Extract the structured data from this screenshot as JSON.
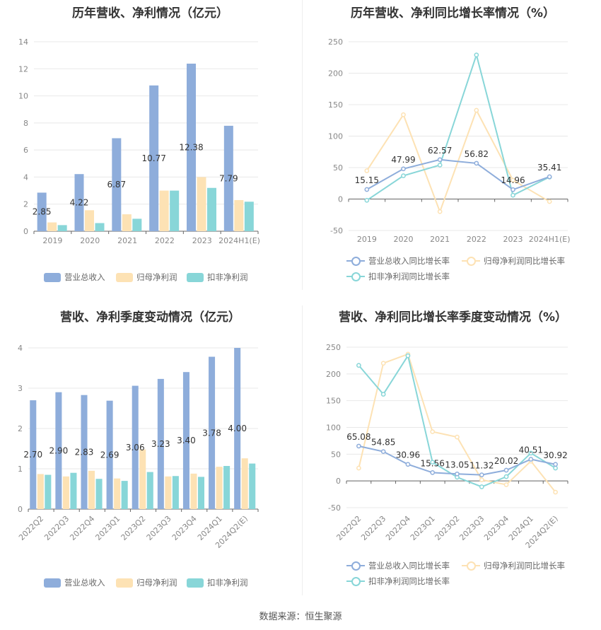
{
  "source_note": "数据来源：恒生聚源",
  "colors": {
    "revenue": "#8eaddb",
    "parent_profit": "#fde2b4",
    "deducted_profit": "#88d6d8",
    "revenue_line": "#8eaddb",
    "parent_line": "#fde2b4",
    "deducted_line": "#88d6d8"
  },
  "chart_data": [
    {
      "type": "bar",
      "title": "历年营收、净利情况（亿元）",
      "categories": [
        "2019",
        "2020",
        "2021",
        "2022",
        "2023",
        "2024H1(E)"
      ],
      "ylim": [
        0,
        14
      ],
      "yticks": [
        0,
        2,
        4,
        6,
        8,
        10,
        12,
        14
      ],
      "series": [
        {
          "name": "营业总收入",
          "values": [
            2.85,
            4.22,
            6.87,
            10.77,
            12.38,
            7.79
          ],
          "labels": [
            "2.85",
            "4.22",
            "6.87",
            "10.77",
            "12.38",
            "7.79"
          ]
        },
        {
          "name": "归母净利润",
          "values": [
            0.65,
            1.55,
            1.25,
            3.0,
            4.0,
            2.3
          ]
        },
        {
          "name": "扣非净利润",
          "values": [
            0.45,
            0.6,
            0.92,
            3.0,
            3.2,
            2.18
          ]
        }
      ],
      "legend": "bottom"
    },
    {
      "type": "line",
      "title": "历年营收、净利同比增长率情况（%）",
      "categories": [
        "2019",
        "2020",
        "2021",
        "2022",
        "2023",
        "2024H1(E)"
      ],
      "ylim": [
        -50,
        250
      ],
      "yticks": [
        -50,
        0,
        50,
        100,
        150,
        200,
        250
      ],
      "series": [
        {
          "name": "营业总收入同比增长率",
          "values": [
            15.15,
            47.99,
            62.57,
            56.82,
            14.96,
            35.41
          ],
          "labels": [
            "15.15",
            "47.99",
            "62.57",
            "56.82",
            "14.96",
            "35.41"
          ]
        },
        {
          "name": "归母净利润同比增长率",
          "values": [
            45,
            134,
            -20,
            141,
            30,
            -4
          ]
        },
        {
          "name": "扣非净利润同比增长率",
          "values": [
            -2,
            37,
            54,
            229,
            6,
            35
          ]
        }
      ],
      "legend": "bottom"
    },
    {
      "type": "bar",
      "title": "营收、净利季度变动情况（亿元）",
      "categories": [
        "2022Q2",
        "2022Q3",
        "2022Q4",
        "2023Q1",
        "2023Q2",
        "2023Q3",
        "2023Q4",
        "2024Q1",
        "2024Q2(E)"
      ],
      "ylim": [
        0,
        4
      ],
      "yticks": [
        0,
        1,
        2,
        3,
        4
      ],
      "series": [
        {
          "name": "营业总收入",
          "values": [
            2.7,
            2.9,
            2.83,
            2.69,
            3.06,
            3.23,
            3.4,
            3.78,
            4.0
          ],
          "labels": [
            "2.70",
            "2.90",
            "2.83",
            "2.69",
            "3.06",
            "3.23",
            "3.40",
            "3.78",
            "4.00"
          ]
        },
        {
          "name": "归母净利润",
          "values": [
            0.87,
            0.81,
            0.95,
            0.76,
            1.48,
            0.81,
            0.88,
            1.05,
            1.26
          ]
        },
        {
          "name": "扣非净利润",
          "values": [
            0.85,
            0.9,
            0.75,
            0.7,
            0.92,
            0.82,
            0.8,
            1.07,
            1.13
          ]
        }
      ],
      "legend": "bottom"
    },
    {
      "type": "line",
      "title": "营收、净利同比增长率季度变动情况（%）",
      "categories": [
        "2022Q2",
        "2022Q3",
        "2022Q4",
        "2023Q1",
        "2023Q2",
        "2023Q3",
        "2023Q4",
        "2024Q1",
        "2024Q2(E)"
      ],
      "ylim": [
        -50,
        250
      ],
      "yticks": [
        -50,
        0,
        50,
        100,
        150,
        200,
        250
      ],
      "series": [
        {
          "name": "营业总收入同比增长率",
          "values": [
            65.08,
            54.85,
            30.96,
            15.56,
            13.05,
            11.32,
            20.02,
            40.51,
            30.92
          ],
          "labels": [
            "65.08",
            "54.85",
            "30.96",
            "15.56",
            "13.05",
            "11.32",
            "20.02",
            "40.51",
            "30.92"
          ]
        },
        {
          "name": "归母净利润同比增长率",
          "values": [
            24,
            220,
            237,
            92,
            82,
            2,
            -7,
            37,
            -21
          ]
        },
        {
          "name": "扣非净利润同比增长率",
          "values": [
            216,
            162,
            234,
            35,
            7,
            -11,
            8,
            52,
            24
          ]
        }
      ],
      "legend": "bottom"
    }
  ]
}
